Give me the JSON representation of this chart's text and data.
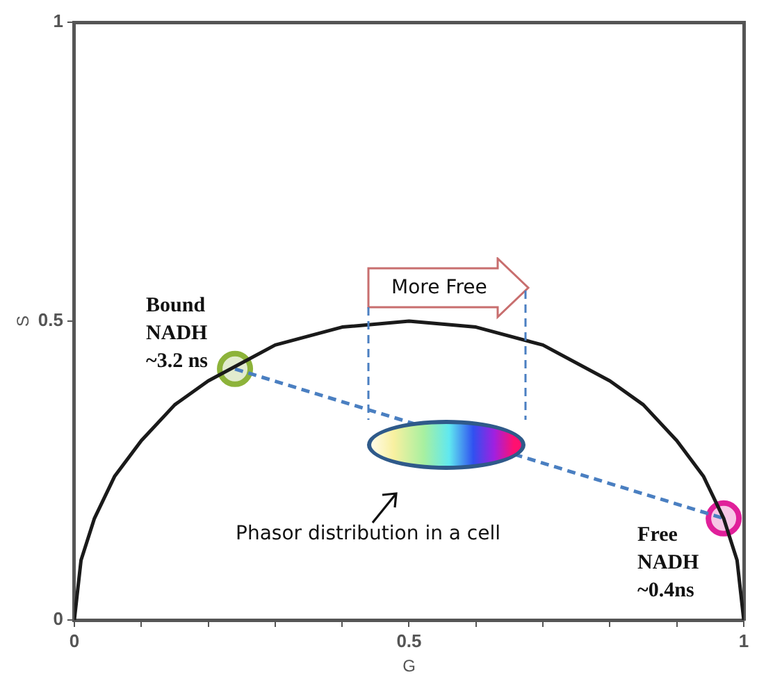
{
  "chart_data": {
    "type": "line",
    "xlabel": "G",
    "ylabel": "S",
    "xlim": [
      0,
      1
    ],
    "ylim": [
      0,
      1
    ],
    "xticks": [
      0,
      {
        "value": 0.1,
        "label": null
      },
      {
        "value": 0.2,
        "label": null
      },
      {
        "value": 0.3,
        "label": null
      },
      {
        "value": 0.4,
        "label": null
      },
      0.5,
      {
        "value": 0.6,
        "label": null
      },
      {
        "value": 0.7,
        "label": null
      },
      {
        "value": 0.8,
        "label": null
      },
      {
        "value": 0.9,
        "label": null
      },
      1
    ],
    "yticks": [
      0,
      0.5,
      1
    ],
    "grid": false,
    "legend": false,
    "series": [
      {
        "type": "line",
        "color": "#1a1a1a",
        "marker": "none",
        "line_style": "solid",
        "x": [
          0,
          0.01,
          0.03,
          0.06,
          0.1,
          0.15,
          0.2,
          0.3,
          0.4,
          0.5,
          0.6,
          0.7,
          0.8,
          0.85,
          0.9,
          0.94,
          0.97,
          0.99,
          1
        ],
        "values": [
          0,
          0.1,
          0.17,
          0.24,
          0.3,
          0.36,
          0.4,
          0.46,
          0.49,
          0.5,
          0.49,
          0.46,
          0.4,
          0.36,
          0.3,
          0.24,
          0.17,
          0.1,
          0
        ]
      },
      {
        "type": "line",
        "color": "#4a7fc1",
        "marker": "none",
        "line_style": "dashed",
        "x": [
          0.24,
          0.97
        ],
        "values": [
          0.42,
          0.17
        ]
      },
      {
        "type": "scatter",
        "color": "#8db33a",
        "marker": "circle",
        "x": [
          0.24
        ],
        "values": [
          0.42
        ]
      },
      {
        "type": "scatter",
        "color": "#e0209a",
        "marker": "circle",
        "x": [
          0.97
        ],
        "values": [
          0.17
        ]
      }
    ],
    "annotations": [
      {
        "text": "Bound\nNADH\n~3.2 ns",
        "x": 0.24,
        "y": 0.42
      },
      {
        "text": "Free\nNADH\n~0.4ns",
        "x": 0.97,
        "y": 0.17
      },
      "More Free",
      "Phasor distribution in a cell"
    ]
  }
}
